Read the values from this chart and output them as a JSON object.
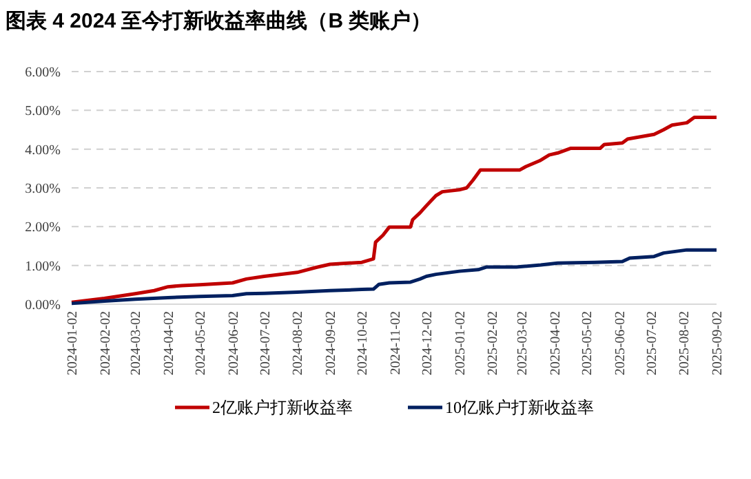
{
  "chart_data": {
    "type": "line",
    "title": "图表 4 2024 至今打新收益率曲线（B 类账户）",
    "xlim": [
      "2024-01-02",
      "2025-09-02"
    ],
    "xticks": [
      "2024-01-02",
      "2024-02-02",
      "2024-03-02",
      "2024-04-02",
      "2024-05-02",
      "2024-06-02",
      "2024-07-02",
      "2024-08-02",
      "2024-09-02",
      "2024-10-02",
      "2024-11-02",
      "2024-12-02",
      "2025-01-02",
      "2025-02-02",
      "2025-03-02",
      "2025-04-02",
      "2025-05-02",
      "2025-06-02",
      "2025-07-02",
      "2025-08-02",
      "2025-09-02"
    ],
    "ylim": [
      0,
      6
    ],
    "yticks": [
      {
        "value": 0,
        "label": "0.00%"
      },
      {
        "value": 1,
        "label": "1.00%"
      },
      {
        "value": 2,
        "label": "2.00%"
      },
      {
        "value": 3,
        "label": "3.00%"
      },
      {
        "value": 4,
        "label": "4.00%"
      },
      {
        "value": 5,
        "label": "5.00%"
      },
      {
        "value": 6,
        "label": "6.00%"
      }
    ],
    "grid": "y",
    "legend": "bottom",
    "series": [
      {
        "name": "2亿账户打新收益率",
        "color": "#c00000",
        "x": [
          "2024-01-02",
          "2024-02-02",
          "2024-03-02",
          "2024-03-20",
          "2024-04-02",
          "2024-04-15",
          "2024-05-02",
          "2024-06-02",
          "2024-06-15",
          "2024-07-02",
          "2024-08-02",
          "2024-08-20",
          "2024-09-02",
          "2024-10-02",
          "2024-10-13",
          "2024-10-15",
          "2024-10-22",
          "2024-10-28",
          "2024-11-17",
          "2024-11-19",
          "2024-11-26",
          "2024-12-02",
          "2024-12-11",
          "2024-12-17",
          "2025-01-02",
          "2025-01-09",
          "2025-01-15",
          "2025-01-22",
          "2025-02-28",
          "2025-03-06",
          "2025-03-19",
          "2025-03-28",
          "2025-04-05",
          "2025-04-17",
          "2025-05-15",
          "2025-05-19",
          "2025-06-05",
          "2025-06-10",
          "2025-07-05",
          "2025-07-14",
          "2025-07-22",
          "2025-08-05",
          "2025-08-12",
          "2025-09-02"
        ],
        "values": [
          0.05,
          0.15,
          0.27,
          0.35,
          0.45,
          0.48,
          0.5,
          0.55,
          0.65,
          0.72,
          0.82,
          0.95,
          1.03,
          1.08,
          1.17,
          1.6,
          1.78,
          1.99,
          1.99,
          2.18,
          2.36,
          2.54,
          2.8,
          2.9,
          2.95,
          3.0,
          3.2,
          3.46,
          3.46,
          3.55,
          3.7,
          3.85,
          3.9,
          4.02,
          4.02,
          4.12,
          4.16,
          4.26,
          4.38,
          4.5,
          4.62,
          4.68,
          4.82,
          4.82
        ]
      },
      {
        "name": "10亿账户打新收益率",
        "color": "#002060",
        "x": [
          "2024-01-02",
          "2024-02-02",
          "2024-03-02",
          "2024-04-02",
          "2024-05-02",
          "2024-06-02",
          "2024-06-15",
          "2024-07-02",
          "2024-08-02",
          "2024-09-02",
          "2024-10-02",
          "2024-10-13",
          "2024-10-18",
          "2024-10-28",
          "2024-11-17",
          "2024-11-26",
          "2024-12-02",
          "2024-12-11",
          "2025-01-02",
          "2025-01-20",
          "2025-01-28",
          "2025-02-25",
          "2025-03-20",
          "2025-04-05",
          "2025-05-10",
          "2025-06-05",
          "2025-06-12",
          "2025-07-05",
          "2025-07-14",
          "2025-08-05",
          "2025-09-02"
        ],
        "values": [
          0.02,
          0.08,
          0.13,
          0.17,
          0.2,
          0.22,
          0.27,
          0.28,
          0.31,
          0.35,
          0.38,
          0.39,
          0.51,
          0.55,
          0.57,
          0.65,
          0.72,
          0.77,
          0.85,
          0.89,
          0.96,
          0.96,
          1.01,
          1.06,
          1.08,
          1.1,
          1.19,
          1.23,
          1.32,
          1.4,
          1.4
        ]
      }
    ]
  }
}
